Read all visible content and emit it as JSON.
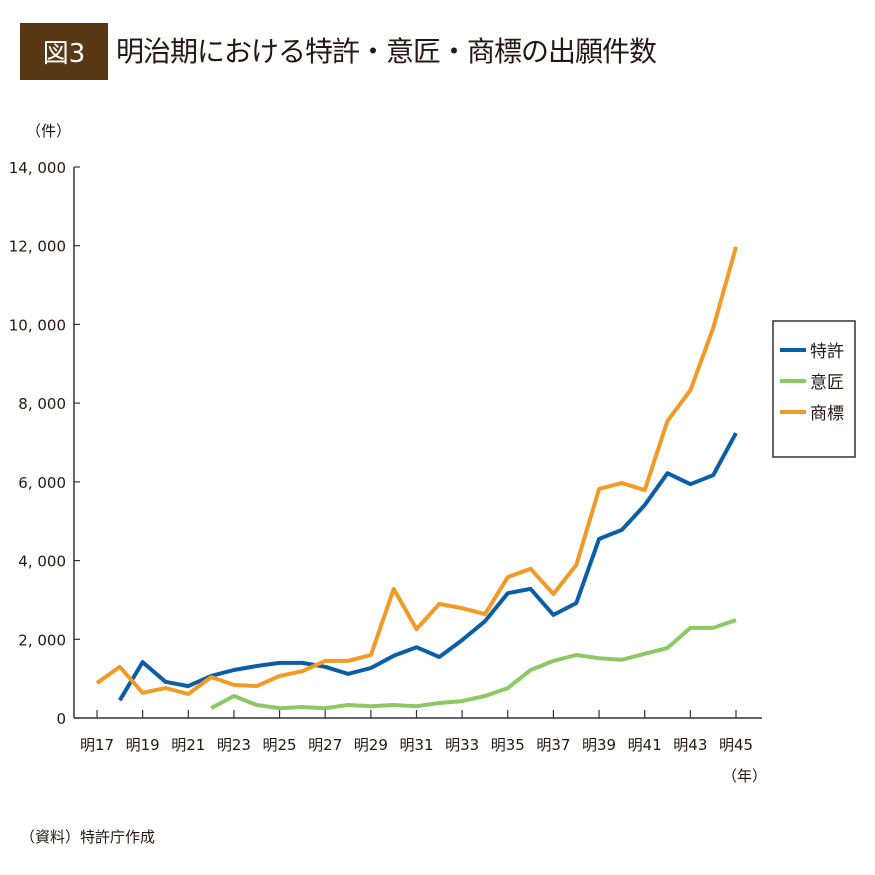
{
  "header": {
    "figure_label": "図3",
    "title": "明治期における特許・意匠・商標の出願件数"
  },
  "source": "（資料）特許庁作成",
  "chart_data": {
    "type": "line",
    "title": "明治期における特許・意匠・商標の出願件数",
    "ylabel": "（件）",
    "xlabel": "（年）",
    "ylim": [
      0,
      14000
    ],
    "yticks": [
      0,
      2000,
      4000,
      6000,
      8000,
      10000,
      12000,
      14000
    ],
    "ytick_labels": [
      "0",
      "2, 000",
      "4, 000",
      "6, 000",
      "8, 000",
      "10, 000",
      "12, 000",
      "14, 000"
    ],
    "x": [
      "明17",
      "明18",
      "明19",
      "明20",
      "明21",
      "明22",
      "明23",
      "明24",
      "明25",
      "明26",
      "明27",
      "明28",
      "明29",
      "明30",
      "明31",
      "明32",
      "明33",
      "明34",
      "明35",
      "明36",
      "明37",
      "明38",
      "明39",
      "明40",
      "明41",
      "明42",
      "明43",
      "明44",
      "明45"
    ],
    "xtick_labels": [
      "明17",
      "明19",
      "明21",
      "明23",
      "明25",
      "明27",
      "明29",
      "明31",
      "明33",
      "明35",
      "明37",
      "明39",
      "明41",
      "明43",
      "明45"
    ],
    "grid": false,
    "legend_position": "right",
    "series": [
      {
        "name": "特許",
        "color": "#0a5ea8",
        "values": [
          null,
          450,
          1420,
          920,
          810,
          1070,
          1220,
          1320,
          1400,
          1400,
          1300,
          1120,
          1270,
          1580,
          1800,
          1550,
          1980,
          2460,
          3170,
          3280,
          2620,
          2920,
          4550,
          4780,
          5410,
          6220,
          5940,
          6170,
          7240
        ]
      },
      {
        "name": "意匠",
        "color": "#8cc864",
        "values": [
          null,
          null,
          null,
          null,
          null,
          250,
          560,
          330,
          250,
          280,
          250,
          330,
          300,
          330,
          300,
          380,
          430,
          560,
          760,
          1220,
          1450,
          1600,
          1520,
          1480,
          1630,
          1780,
          2290,
          2290,
          2490
        ]
      },
      {
        "name": "商標",
        "color": "#f39a26",
        "values": [
          890,
          1300,
          640,
          760,
          610,
          1040,
          840,
          810,
          1070,
          1190,
          1450,
          1450,
          1600,
          3280,
          2260,
          2900,
          2790,
          2640,
          3580,
          3790,
          3150,
          3890,
          5820,
          5970,
          5790,
          7550,
          8330,
          9910,
          11970
        ]
      }
    ]
  }
}
